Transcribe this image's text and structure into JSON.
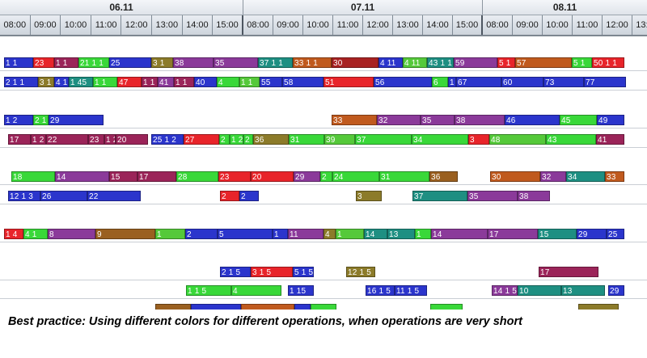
{
  "dates": [
    "06.11",
    "07.11",
    "08.11"
  ],
  "hours": [
    "08:00",
    "09:00",
    "10:00",
    "11:00",
    "12:00",
    "13:00",
    "14:00",
    "15:00",
    "08:00",
    "09:00",
    "10:00",
    "11:00",
    "12:00",
    "13:00",
    "14:00",
    "15:00",
    "08:00",
    "09:00",
    "10:00",
    "11:00",
    "12:00",
    "13:00"
  ],
  "colors": {
    "blue": "#2b35cc",
    "red": "#e8242a",
    "green": "#39d839",
    "olive": "#8c7b2a",
    "purple": "#8b3a9a",
    "orange": "#c05a1e",
    "teal": "#1e8f82",
    "maroon": "#9b2459",
    "darkred": "#a82222",
    "brown": "#9a6020",
    "lime": "#55c93a",
    "navy": "#283a9e"
  },
  "rows": [
    {
      "id": "r1",
      "ops": [
        {
          "label": "1 1",
          "c": "blue",
          "s": 5,
          "w": 36
        },
        {
          "label": "23",
          "c": "red",
          "s": 41,
          "w": 26
        },
        {
          "label": "1 1",
          "c": "maroon",
          "s": 67,
          "w": 30
        },
        {
          "label": "21 1 1",
          "c": "green",
          "s": 97,
          "w": 38
        },
        {
          "label": "25",
          "c": "blue",
          "s": 135,
          "w": 52
        },
        {
          "label": "3 1",
          "c": "olive",
          "s": 187,
          "w": 27
        },
        {
          "label": "38",
          "c": "purple",
          "s": 214,
          "w": 50
        },
        {
          "label": "35",
          "c": "purple",
          "s": 264,
          "w": 55
        },
        {
          "label": "37 1 1",
          "c": "teal",
          "s": 319,
          "w": 43
        },
        {
          "label": "33 1 1",
          "c": "orange",
          "s": 362,
          "w": 48
        },
        {
          "label": "30",
          "c": "darkred",
          "s": 410,
          "w": 58
        },
        {
          "label": "4 11",
          "c": "blue",
          "s": 468,
          "w": 30
        },
        {
          "label": "4 11",
          "c": "lime",
          "s": 498,
          "w": 30
        },
        {
          "label": "43 1 1",
          "c": "teal",
          "s": 528,
          "w": 33
        },
        {
          "label": "59",
          "c": "purple",
          "s": 561,
          "w": 54
        },
        {
          "label": "5 1",
          "c": "red",
          "s": 615,
          "w": 22
        },
        {
          "label": "57",
          "c": "orange",
          "s": 637,
          "w": 70
        },
        {
          "label": "5 1",
          "c": "green",
          "s": 707,
          "w": 25
        },
        {
          "label": "50 1 1",
          "c": "red",
          "s": 732,
          "w": 40
        }
      ]
    },
    {
      "id": "r2",
      "ops": [
        {
          "label": "2 1 1",
          "c": "blue",
          "s": 5,
          "w": 42
        },
        {
          "label": "3 1",
          "c": "olive",
          "s": 47,
          "w": 20
        },
        {
          "label": "4 1",
          "c": "blue",
          "s": 67,
          "w": 18
        },
        {
          "label": "1 45",
          "c": "teal",
          "s": 85,
          "w": 30
        },
        {
          "label": "1 1",
          "c": "green",
          "s": 115,
          "w": 30
        },
        {
          "label": "47",
          "c": "red",
          "s": 145,
          "w": 30
        },
        {
          "label": "1 1",
          "c": "maroon",
          "s": 175,
          "w": 20
        },
        {
          "label": "41",
          "c": "purple",
          "s": 195,
          "w": 20
        },
        {
          "label": "1 1",
          "c": "maroon",
          "s": 215,
          "w": 25
        },
        {
          "label": "40",
          "c": "blue",
          "s": 240,
          "w": 28
        },
        {
          "label": "4",
          "c": "green",
          "s": 268,
          "w": 28
        },
        {
          "label": "1 1",
          "c": "lime",
          "s": 296,
          "w": 25
        },
        {
          "label": "55",
          "c": "blue",
          "s": 321,
          "w": 28
        },
        {
          "label": "58",
          "c": "blue",
          "s": 349,
          "w": 51
        },
        {
          "label": "51",
          "c": "red",
          "s": 400,
          "w": 62
        },
        {
          "label": "56",
          "c": "blue",
          "s": 462,
          "w": 72
        },
        {
          "label": "6",
          "c": "green",
          "s": 534,
          "w": 20
        },
        {
          "label": "1 1",
          "c": "blue",
          "s": 554,
          "w": 10
        },
        {
          "label": "67",
          "c": "blue",
          "s": 564,
          "w": 56
        },
        {
          "label": "60",
          "c": "blue",
          "s": 620,
          "w": 52
        },
        {
          "label": "73",
          "c": "blue",
          "s": 672,
          "w": 50
        },
        {
          "label": "77",
          "c": "blue",
          "s": 722,
          "w": 52
        }
      ]
    },
    {
      "id": "r3",
      "ops": [
        {
          "label": "1 2",
          "c": "blue",
          "s": 5,
          "w": 36
        },
        {
          "label": "2 1",
          "c": "green",
          "s": 41,
          "w": 19
        },
        {
          "label": "29",
          "c": "blue",
          "s": 60,
          "w": 68
        },
        {
          "label": "33",
          "c": "orange",
          "s": 410,
          "w": 56
        },
        {
          "label": "32",
          "c": "purple",
          "s": 466,
          "w": 54
        },
        {
          "label": "35",
          "c": "purple",
          "s": 520,
          "w": 42
        },
        {
          "label": "38",
          "c": "purple",
          "s": 562,
          "w": 62
        },
        {
          "label": "46",
          "c": "blue",
          "s": 624,
          "w": 68
        },
        {
          "label": "45",
          "c": "green",
          "s": 692,
          "w": 46
        },
        {
          "label": "49",
          "c": "blue",
          "s": 738,
          "w": 34
        }
      ]
    },
    {
      "id": "r4",
      "ops": [
        {
          "label": "17",
          "c": "maroon",
          "s": 10,
          "w": 28
        },
        {
          "label": "1 2",
          "c": "maroon",
          "s": 38,
          "w": 19
        },
        {
          "label": "22",
          "c": "maroon",
          "s": 57,
          "w": 52
        },
        {
          "label": "23",
          "c": "maroon",
          "s": 109,
          "w": 20
        },
        {
          "label": "1 2",
          "c": "maroon",
          "s": 129,
          "w": 14
        },
        {
          "label": "20",
          "c": "maroon",
          "s": 143,
          "w": 40
        },
        {
          "label": "25 1 2",
          "c": "blue",
          "s": 187,
          "w": 40
        },
        {
          "label": "27",
          "c": "red",
          "s": 227,
          "w": 44
        },
        {
          "label": "2",
          "c": "green",
          "s": 271,
          "w": 13
        },
        {
          "label": "1 2",
          "c": "green",
          "s": 284,
          "w": 17
        },
        {
          "label": "2",
          "c": "green",
          "s": 301,
          "w": 12
        },
        {
          "label": "36",
          "c": "olive",
          "s": 313,
          "w": 44
        },
        {
          "label": "31",
          "c": "green",
          "s": 357,
          "w": 44
        },
        {
          "label": "39",
          "c": "lime",
          "s": 401,
          "w": 38
        },
        {
          "label": "37",
          "c": "green",
          "s": 439,
          "w": 70
        },
        {
          "label": "34",
          "c": "green",
          "s": 509,
          "w": 70
        },
        {
          "label": "3",
          "c": "red",
          "s": 579,
          "w": 26
        },
        {
          "label": "48",
          "c": "lime",
          "s": 605,
          "w": 70
        },
        {
          "label": "43",
          "c": "green",
          "s": 675,
          "w": 62
        },
        {
          "label": "41",
          "c": "maroon",
          "s": 737,
          "w": 35
        }
      ]
    },
    {
      "id": "r5",
      "ops": [
        {
          "label": "18",
          "c": "green",
          "s": 14,
          "w": 54
        },
        {
          "label": "14",
          "c": "purple",
          "s": 68,
          "w": 67
        },
        {
          "label": "15",
          "c": "maroon",
          "s": 135,
          "w": 35
        },
        {
          "label": "17",
          "c": "maroon",
          "s": 170,
          "w": 48
        },
        {
          "label": "28",
          "c": "green",
          "s": 218,
          "w": 52
        },
        {
          "label": "23",
          "c": "red",
          "s": 270,
          "w": 40
        },
        {
          "label": "20",
          "c": "red",
          "s": 310,
          "w": 53
        },
        {
          "label": "29",
          "c": "purple",
          "s": 363,
          "w": 33
        },
        {
          "label": "2",
          "c": "green",
          "s": 396,
          "w": 15
        },
        {
          "label": "24",
          "c": "green",
          "s": 411,
          "w": 58
        },
        {
          "label": "31",
          "c": "green",
          "s": 469,
          "w": 62
        },
        {
          "label": "36",
          "c": "brown",
          "s": 531,
          "w": 35
        },
        {
          "label": "30",
          "c": "orange",
          "s": 606,
          "w": 62
        },
        {
          "label": "32",
          "c": "purple",
          "s": 668,
          "w": 32
        },
        {
          "label": "34",
          "c": "teal",
          "s": 700,
          "w": 48
        },
        {
          "label": "33",
          "c": "orange",
          "s": 748,
          "w": 24
        }
      ]
    },
    {
      "id": "r6",
      "ops": [
        {
          "label": "12 1 3",
          "c": "blue",
          "s": 10,
          "w": 40
        },
        {
          "label": "26",
          "c": "blue",
          "s": 50,
          "w": 58
        },
        {
          "label": "22",
          "c": "blue",
          "s": 108,
          "w": 66
        },
        {
          "label": "2",
          "c": "red",
          "s": 272,
          "w": 24
        },
        {
          "label": "2",
          "c": "blue",
          "s": 296,
          "w": 24
        },
        {
          "label": "3",
          "c": "olive",
          "s": 440,
          "w": 32
        },
        {
          "label": "37",
          "c": "teal",
          "s": 510,
          "w": 68
        },
        {
          "label": "35",
          "c": "purple",
          "s": 578,
          "w": 62
        },
        {
          "label": "38",
          "c": "purple",
          "s": 640,
          "w": 40
        }
      ]
    },
    {
      "id": "r7",
      "ops": [
        {
          "label": "1 4",
          "c": "red",
          "s": 5,
          "w": 24
        },
        {
          "label": "4 1",
          "c": "green",
          "s": 29,
          "w": 30
        },
        {
          "label": "8",
          "c": "purple",
          "s": 59,
          "w": 59
        },
        {
          "label": "9",
          "c": "brown",
          "s": 118,
          "w": 74
        },
        {
          "label": "1",
          "c": "lime",
          "s": 192,
          "w": 37
        },
        {
          "label": "2",
          "c": "blue",
          "s": 229,
          "w": 40
        },
        {
          "label": "5",
          "c": "blue",
          "s": 269,
          "w": 68
        },
        {
          "label": "1",
          "c": "blue",
          "s": 337,
          "w": 19
        },
        {
          "label": "11",
          "c": "purple",
          "s": 356,
          "w": 44
        },
        {
          "label": "4",
          "c": "olive",
          "s": 400,
          "w": 15
        },
        {
          "label": "1",
          "c": "lime",
          "s": 415,
          "w": 35
        },
        {
          "label": "14",
          "c": "teal",
          "s": 450,
          "w": 29
        },
        {
          "label": "13",
          "c": "teal",
          "s": 479,
          "w": 34
        },
        {
          "label": "1",
          "c": "green",
          "s": 513,
          "w": 20
        },
        {
          "label": "14",
          "c": "purple",
          "s": 533,
          "w": 70
        },
        {
          "label": "17",
          "c": "purple",
          "s": 603,
          "w": 62
        },
        {
          "label": "15",
          "c": "teal",
          "s": 665,
          "w": 48
        },
        {
          "label": "29",
          "c": "blue",
          "s": 713,
          "w": 37
        },
        {
          "label": "25",
          "c": "blue",
          "s": 750,
          "w": 22
        }
      ]
    },
    {
      "id": "r8",
      "ops": [
        {
          "label": "2 1 5",
          "c": "blue",
          "s": 272,
          "w": 38
        },
        {
          "label": "3 1 5",
          "c": "red",
          "s": 310,
          "w": 52
        },
        {
          "label": "5 1 5",
          "c": "blue",
          "s": 362,
          "w": 26
        },
        {
          "label": "12 1 5",
          "c": "olive",
          "s": 428,
          "w": 36
        },
        {
          "label": "17",
          "c": "maroon",
          "s": 666,
          "w": 74
        }
      ]
    },
    {
      "id": "r9",
      "ops": [
        {
          "label": "1 1 5",
          "c": "green",
          "s": 230,
          "w": 56
        },
        {
          "label": "4",
          "c": "green",
          "s": 286,
          "w": 62
        },
        {
          "label": "1 15",
          "c": "blue",
          "s": 356,
          "w": 32
        },
        {
          "label": "16 1 5",
          "c": "blue",
          "s": 452,
          "w": 36
        },
        {
          "label": "11 1 5",
          "c": "blue",
          "s": 488,
          "w": 40
        },
        {
          "label": "14 1 5",
          "c": "purple",
          "s": 608,
          "w": 32
        },
        {
          "label": "10",
          "c": "teal",
          "s": 640,
          "w": 54
        },
        {
          "label": "13",
          "c": "teal",
          "s": 694,
          "w": 54
        },
        {
          "label": "29",
          "c": "blue",
          "s": 752,
          "w": 20
        }
      ]
    },
    {
      "id": "r10",
      "ops": [
        {
          "label": "",
          "c": "brown",
          "s": 192,
          "w": 44
        },
        {
          "label": "",
          "c": "blue",
          "s": 236,
          "w": 62
        },
        {
          "label": "",
          "c": "orange",
          "s": 298,
          "w": 66
        },
        {
          "label": "",
          "c": "blue",
          "s": 364,
          "w": 20
        },
        {
          "label": "",
          "c": "green",
          "s": 384,
          "w": 32
        },
        {
          "label": "",
          "c": "green",
          "s": 532,
          "w": 40
        },
        {
          "label": "",
          "c": "olive",
          "s": 715,
          "w": 50
        }
      ]
    }
  ],
  "caption": "Best practice: Using different colors for different operations, when operations are very short"
}
